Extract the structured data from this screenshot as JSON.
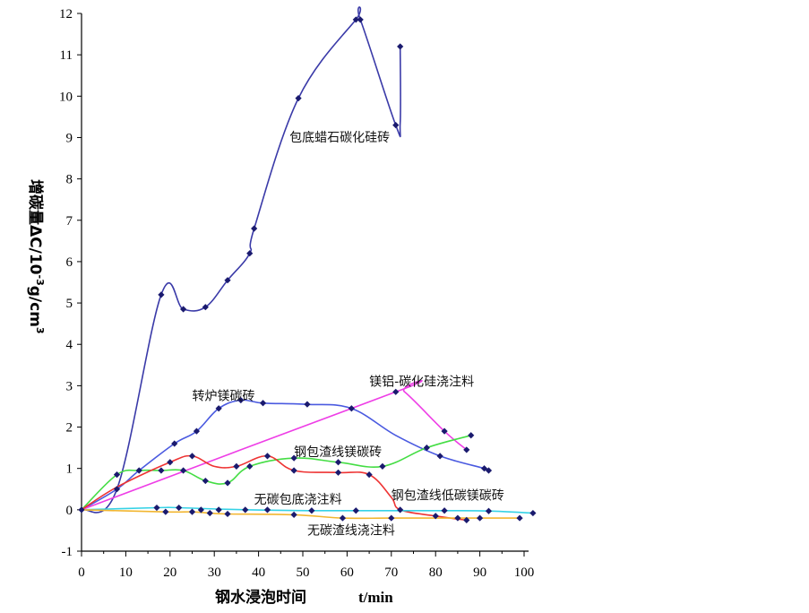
{
  "chart_data": {
    "type": "line",
    "xlabel": "钢水浸泡时间",
    "xunit": "t/min",
    "ylabel": {
      "prefix": "增碳量",
      "delta": "ΔC/10",
      "exp1": "-3",
      "mid": "g/cm",
      "exp2": "3"
    },
    "xlim": [
      0,
      100
    ],
    "ylim": [
      -1,
      12
    ],
    "xticks": [
      "0",
      "10",
      "20",
      "30",
      "40",
      "50",
      "60",
      "70",
      "80",
      "90",
      "100"
    ],
    "yticks": [
      "-1",
      "0",
      "1",
      "2",
      "3",
      "4",
      "5",
      "6",
      "7",
      "8",
      "9",
      "10",
      "11",
      "12"
    ],
    "grid": false,
    "series": [
      {
        "name": "包底蜡石碳化硅砖",
        "color": "#3a3aa8",
        "points": [
          [
            0,
            0
          ],
          [
            8,
            0.5
          ],
          [
            18,
            5.2
          ],
          [
            23,
            4.85
          ],
          [
            28,
            4.9
          ],
          [
            33,
            5.55
          ],
          [
            38,
            6.2
          ],
          [
            39,
            6.8
          ],
          [
            49,
            9.95
          ],
          [
            62,
            11.85
          ],
          [
            63,
            11.85
          ],
          [
            71,
            9.3
          ],
          [
            72,
            9.35
          ],
          [
            72,
            11.2
          ]
        ]
      },
      {
        "name": "转炉镁碳砖",
        "color": "#4a5ae0",
        "points": [
          [
            0,
            0
          ],
          [
            8,
            0.5
          ],
          [
            13,
            0.95
          ],
          [
            21,
            1.6
          ],
          [
            26,
            1.9
          ],
          [
            31,
            2.45
          ],
          [
            36,
            2.65
          ],
          [
            41,
            2.58
          ],
          [
            51,
            2.55
          ],
          [
            61,
            2.45
          ],
          [
            71,
            1.8
          ],
          [
            81,
            1.3
          ],
          [
            91,
            1.0
          ],
          [
            92,
            0.95
          ]
        ]
      },
      {
        "name": "镁铝-碳化硅浇注料",
        "color": "#ee3ee6",
        "points": [
          [
            0,
            0
          ],
          [
            71,
            2.85
          ],
          [
            73,
            2.85
          ],
          [
            82,
            1.9
          ],
          [
            87,
            1.45
          ]
        ]
      },
      {
        "name": "钢包渣线镁碳砖",
        "color": "#44dd44",
        "points": [
          [
            0,
            0
          ],
          [
            8,
            0.85
          ],
          [
            13,
            0.95
          ],
          [
            18,
            0.95
          ],
          [
            23,
            0.95
          ],
          [
            28,
            0.7
          ],
          [
            33,
            0.65
          ],
          [
            38,
            1.05
          ],
          [
            48,
            1.25
          ],
          [
            58,
            1.15
          ],
          [
            68,
            1.05
          ],
          [
            78,
            1.5
          ],
          [
            88,
            1.8
          ]
        ]
      },
      {
        "name": "钢包渣线低碳镁碳砖",
        "color": "#ee3333",
        "points": [
          [
            0,
            0
          ],
          [
            8,
            0.55
          ],
          [
            20,
            1.15
          ],
          [
            25,
            1.3
          ],
          [
            30,
            1.05
          ],
          [
            35,
            1.05
          ],
          [
            42,
            1.3
          ],
          [
            48,
            0.95
          ],
          [
            58,
            0.9
          ],
          [
            65,
            0.85
          ],
          [
            70,
            0.3
          ],
          [
            72,
            0.0
          ],
          [
            80,
            -0.15
          ],
          [
            87,
            -0.25
          ]
        ]
      },
      {
        "name": "无碳包底浇注料",
        "color": "#36d2e6",
        "points": [
          [
            0,
            0
          ],
          [
            17,
            0.05
          ],
          [
            22,
            0.05
          ],
          [
            37,
            0.0
          ],
          [
            52,
            -0.02
          ],
          [
            62,
            -0.02
          ],
          [
            82,
            -0.02
          ],
          [
            92,
            -0.03
          ],
          [
            102,
            -0.08
          ]
        ]
      },
      {
        "name": "无碳渣线浇注料",
        "color": "#f2b630",
        "points": [
          [
            0,
            0
          ],
          [
            19,
            -0.05
          ],
          [
            25,
            -0.05
          ],
          [
            29,
            -0.08
          ],
          [
            33,
            -0.1
          ],
          [
            48,
            -0.12
          ],
          [
            59,
            -0.2
          ],
          [
            70,
            -0.2
          ],
          [
            85,
            -0.2
          ],
          [
            90,
            -0.2
          ],
          [
            99,
            -0.2
          ]
        ]
      }
    ],
    "markers": [
      [
        0,
        0
      ],
      [
        8,
        0.5
      ],
      [
        18,
        5.2
      ],
      [
        23,
        4.85
      ],
      [
        28,
        4.9
      ],
      [
        33,
        5.55
      ],
      [
        38,
        6.2
      ],
      [
        39,
        6.8
      ],
      [
        49,
        9.95
      ],
      [
        62,
        11.85
      ],
      [
        63,
        11.85
      ],
      [
        71,
        9.3
      ],
      [
        72,
        11.2
      ],
      [
        13,
        0.95
      ],
      [
        21,
        1.6
      ],
      [
        26,
        1.9
      ],
      [
        31,
        2.45
      ],
      [
        36,
        2.65
      ],
      [
        41,
        2.58
      ],
      [
        51,
        2.55
      ],
      [
        61,
        2.45
      ],
      [
        81,
        1.3
      ],
      [
        91,
        1.0
      ],
      [
        92,
        0.95
      ],
      [
        71,
        2.85
      ],
      [
        82,
        1.9
      ],
      [
        87,
        1.45
      ],
      [
        8,
        0.85
      ],
      [
        18,
        0.95
      ],
      [
        23,
        0.95
      ],
      [
        28,
        0.7
      ],
      [
        33,
        0.65
      ],
      [
        38,
        1.05
      ],
      [
        48,
        1.25
      ],
      [
        58,
        1.15
      ],
      [
        68,
        1.05
      ],
      [
        78,
        1.5
      ],
      [
        88,
        1.8
      ],
      [
        20,
        1.15
      ],
      [
        25,
        1.3
      ],
      [
        35,
        1.05
      ],
      [
        42,
        1.3
      ],
      [
        48,
        0.95
      ],
      [
        58,
        0.9
      ],
      [
        65,
        0.85
      ],
      [
        72,
        0.0
      ],
      [
        80,
        -0.15
      ],
      [
        87,
        -0.25
      ],
      [
        17,
        0.05
      ],
      [
        22,
        0.05
      ],
      [
        19,
        -0.05
      ],
      [
        27,
        0.0
      ],
      [
        31,
        0.0
      ],
      [
        37,
        0.0
      ],
      [
        42,
        0.0
      ],
      [
        52,
        -0.02
      ],
      [
        62,
        -0.02
      ],
      [
        82,
        -0.02
      ],
      [
        92,
        -0.03
      ],
      [
        102,
        -0.08
      ],
      [
        25,
        -0.05
      ],
      [
        29,
        -0.08
      ],
      [
        33,
        -0.1
      ],
      [
        48,
        -0.12
      ],
      [
        59,
        -0.2
      ],
      [
        70,
        -0.2
      ],
      [
        85,
        -0.2
      ],
      [
        90,
        -0.2
      ],
      [
        99,
        -0.2
      ]
    ],
    "annotations": [
      {
        "text": "包底蜡石碳化硅砖",
        "x": 47,
        "y": 8.9
      },
      {
        "text": "转炉镁碳砖",
        "x": 25,
        "y": 2.65
      },
      {
        "text": "镁铝-碳化硅浇注料",
        "x": 65,
        "y": 3.0
      },
      {
        "text": "钢包渣线镁碳砖",
        "x": 48,
        "y": 1.3
      },
      {
        "text": "无碳包底浇注料",
        "x": 39,
        "y": 0.15
      },
      {
        "text": "钢包渣线低碳镁碳砖",
        "x": 70,
        "y": 0.25
      },
      {
        "text": "无碳渣线浇注料",
        "x": 51,
        "y": -0.6
      }
    ]
  }
}
